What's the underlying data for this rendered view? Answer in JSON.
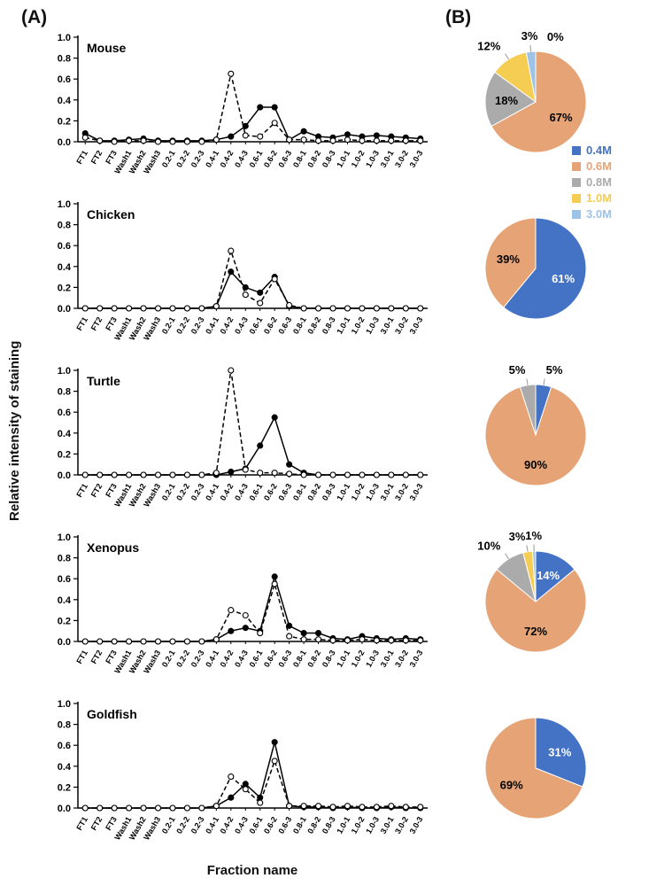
{
  "labels": {
    "panel_a": "(A)",
    "panel_b": "(B)"
  },
  "chart_data": {
    "type": "mixed",
    "shared": {
      "line_type": "line",
      "ylabel": "Relative intensity of staining",
      "xlabel": "Fraction name",
      "ylim": [
        0,
        1.0
      ],
      "yticks": [
        "0.0",
        "0.2",
        "0.4",
        "0.6",
        "0.8",
        "1.0"
      ],
      "grid": false,
      "categories": [
        "FT1",
        "FT2",
        "FT3",
        "Wash1",
        "Wash2",
        "Wash3",
        "0.2-1",
        "0.2-2",
        "0.2-3",
        "0.4-1",
        "0.4-2",
        "0.4-3",
        "0.6-1",
        "0.6-2",
        "0.6-3",
        "0.8-1",
        "0.8-2",
        "0.8-3",
        "1.0-1",
        "1.0-2",
        "1.0-3",
        "3.0-1",
        "3.0-2",
        "3.0-3"
      ]
    },
    "legend": {
      "position": "right",
      "entries": [
        {
          "label": "0.4M",
          "color": "#4472c4"
        },
        {
          "label": "0.6M",
          "color": "#e6a476"
        },
        {
          "label": "0.8M",
          "color": "#ababab"
        },
        {
          "label": "1.0M",
          "color": "#f5cd52"
        },
        {
          "label": "3.0M",
          "color": "#9dc3e6"
        }
      ]
    },
    "panels": [
      {
        "animal": "Mouse",
        "line_series": [
          {
            "line_style": "solid",
            "marker": "filled-circle",
            "values": [
              0.08,
              0.01,
              0.01,
              0.02,
              0.03,
              0.01,
              0.01,
              0.01,
              0.01,
              0.02,
              0.05,
              0.15,
              0.33,
              0.33,
              0.02,
              0.1,
              0.05,
              0.04,
              0.07,
              0.05,
              0.06,
              0.05,
              0.04,
              0.03
            ]
          },
          {
            "line_style": "dashed",
            "marker": "open-circle",
            "values": [
              0.04,
              0.01,
              0,
              0.01,
              0.01,
              0,
              0,
              0,
              0,
              0.02,
              0.65,
              0.06,
              0.05,
              0.18,
              0.02,
              0.02,
              0.01,
              0.01,
              0.02,
              0.01,
              0.01,
              0.01,
              0.01,
              0.01
            ]
          }
        ],
        "pie": {
          "type": "pie",
          "values": [
            0,
            67,
            18,
            12,
            3
          ],
          "show_zero_label": true
        }
      },
      {
        "animal": "Chicken",
        "line_series": [
          {
            "line_style": "solid",
            "marker": "filled-circle",
            "values": [
              0,
              0,
              0,
              0,
              0,
              0,
              0,
              0,
              0,
              0.02,
              0.35,
              0.2,
              0.15,
              0.3,
              0.02,
              0,
              0,
              0,
              0,
              0,
              0,
              0,
              0,
              0
            ]
          },
          {
            "line_style": "dashed",
            "marker": "open-circle",
            "values": [
              0,
              0,
              0,
              0,
              0,
              0,
              0,
              0,
              0,
              0.02,
              0.55,
              0.13,
              0.05,
              0.28,
              0.03,
              0,
              0,
              0,
              0,
              0,
              0,
              0,
              0,
              0
            ]
          }
        ],
        "pie": {
          "type": "pie",
          "values": [
            61,
            39,
            0,
            0,
            0
          ]
        }
      },
      {
        "animal": "Turtle",
        "line_series": [
          {
            "line_style": "solid",
            "marker": "filled-circle",
            "values": [
              0,
              0,
              0,
              0,
              0,
              0,
              0,
              0,
              0,
              0,
              0.03,
              0.06,
              0.28,
              0.55,
              0.1,
              0.02,
              0,
              0,
              0,
              0,
              0,
              0,
              0,
              0
            ]
          },
          {
            "line_style": "dashed",
            "marker": "open-circle",
            "values": [
              0,
              0,
              0,
              0,
              0,
              0,
              0,
              0,
              0,
              0.02,
              1.0,
              0.05,
              0.02,
              0.02,
              0.01,
              0,
              0,
              0,
              0,
              0,
              0,
              0,
              0,
              0
            ]
          }
        ],
        "pie": {
          "type": "pie",
          "values": [
            5,
            90,
            5,
            0,
            0
          ]
        }
      },
      {
        "animal": "Xenopus",
        "line_series": [
          {
            "line_style": "solid",
            "marker": "filled-circle",
            "values": [
              0,
              0,
              0,
              0,
              0,
              0,
              0,
              0,
              0,
              0.02,
              0.1,
              0.13,
              0.1,
              0.62,
              0.15,
              0.08,
              0.08,
              0.03,
              0.02,
              0.05,
              0.03,
              0.02,
              0.03,
              0.02
            ]
          },
          {
            "line_style": "dashed",
            "marker": "open-circle",
            "values": [
              0,
              0,
              0,
              0,
              0,
              0,
              0,
              0,
              0,
              0.02,
              0.3,
              0.25,
              0.08,
              0.55,
              0.05,
              0.02,
              0.02,
              0.01,
              0.01,
              0.02,
              0.01,
              0.01,
              0.01,
              0.01
            ]
          }
        ],
        "pie": {
          "type": "pie",
          "values": [
            14,
            72,
            10,
            3,
            1
          ]
        }
      },
      {
        "animal": "Goldfish",
        "line_series": [
          {
            "line_style": "solid",
            "marker": "filled-circle",
            "values": [
              0,
              0,
              0,
              0,
              0,
              0,
              0,
              0,
              0,
              0.02,
              0.1,
              0.23,
              0.1,
              0.63,
              0.02,
              0.01,
              0.01,
              0,
              0.01,
              0,
              0,
              0.01,
              0,
              0
            ]
          },
          {
            "line_style": "dashed",
            "marker": "open-circle",
            "values": [
              0,
              0,
              0,
              0,
              0,
              0,
              0,
              0,
              0,
              0.02,
              0.3,
              0.18,
              0.05,
              0.45,
              0.02,
              0.02,
              0.02,
              0.01,
              0.02,
              0.01,
              0.01,
              0.02,
              0.01,
              0.01
            ]
          }
        ],
        "pie": {
          "type": "pie",
          "values": [
            31,
            69,
            0,
            0,
            0
          ]
        }
      }
    ]
  }
}
